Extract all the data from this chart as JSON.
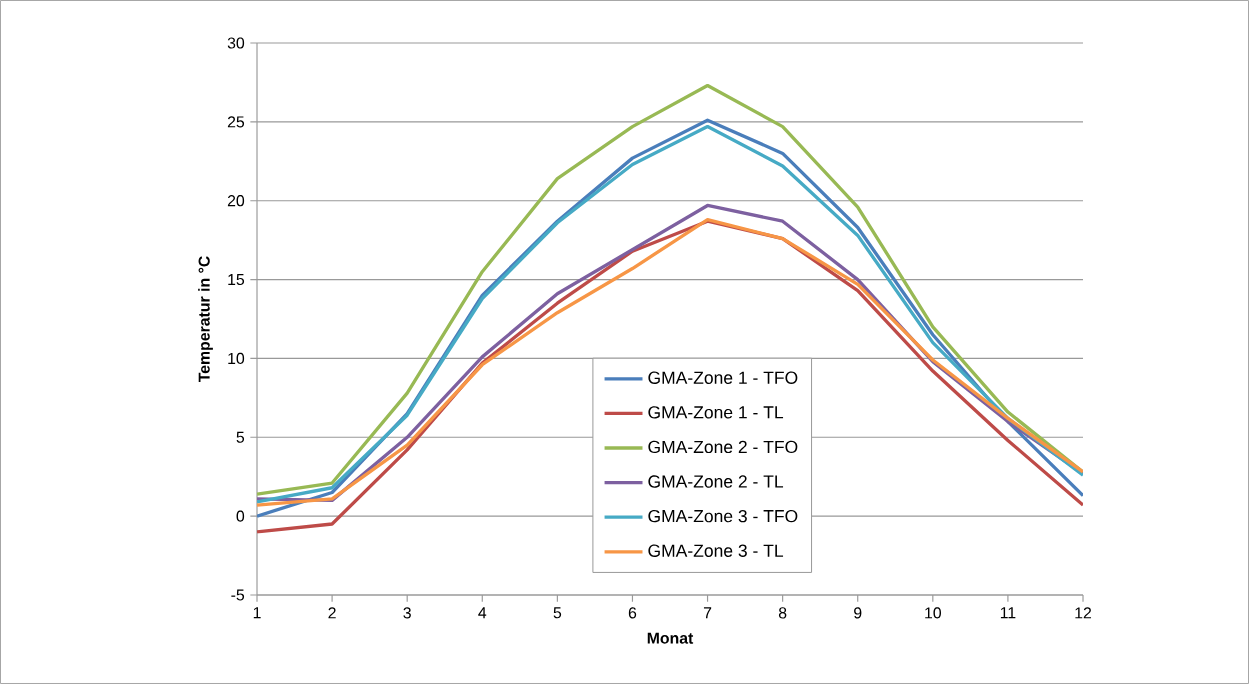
{
  "chart_data": {
    "type": "line",
    "xlabel": "Monat",
    "ylabel": "Temperatur in °C",
    "x": [
      1,
      2,
      3,
      4,
      5,
      6,
      7,
      8,
      9,
      10,
      11,
      12
    ],
    "xlim": [
      1,
      12
    ],
    "xticks": [
      1,
      2,
      3,
      4,
      5,
      6,
      7,
      8,
      9,
      10,
      11,
      12
    ],
    "ylim": [
      -5,
      30
    ],
    "yticks": [
      -5,
      0,
      5,
      10,
      15,
      20,
      25,
      30
    ],
    "grid": "y",
    "legend": "bottom",
    "marker": "none",
    "line_style": "solid",
    "series": [
      {
        "name": "GMA-Zone 1 - TFO",
        "color": "#4a7ebb",
        "values": [
          0,
          1.5,
          6.5,
          14,
          18.7,
          22.7,
          25.1,
          23,
          18.3,
          11.5,
          6,
          1.3
        ]
      },
      {
        "name": "GMA-Zone 1 - TL",
        "color": "#be4b48",
        "values": [
          -1,
          -0.5,
          4.2,
          9.7,
          13.5,
          16.8,
          18.7,
          17.6,
          14.3,
          9.2,
          4.8,
          0.7
        ]
      },
      {
        "name": "GMA-Zone 2 - TFO",
        "color": "#98b954",
        "values": [
          1.4,
          2.1,
          7.8,
          15.5,
          21.4,
          24.7,
          27.3,
          24.7,
          19.6,
          12,
          6.6,
          2.8
        ]
      },
      {
        "name": "GMA-Zone 2 - TL",
        "color": "#7d60a0",
        "values": [
          1.1,
          1,
          5,
          10.1,
          14.1,
          16.9,
          19.7,
          18.7,
          15,
          9.8,
          6,
          2.7
        ]
      },
      {
        "name": "GMA-Zone 3 - TFO",
        "color": "#46aac5",
        "values": [
          0.9,
          1.8,
          6.4,
          13.8,
          18.6,
          22.3,
          24.7,
          22.2,
          17.8,
          11,
          6.2,
          2.6
        ]
      },
      {
        "name": "GMA-Zone 3 - TL",
        "color": "#f79646",
        "values": [
          0.7,
          1.1,
          4.5,
          9.6,
          12.9,
          15.7,
          18.8,
          17.6,
          14.7,
          9.9,
          6.2,
          2.8
        ]
      }
    ]
  }
}
